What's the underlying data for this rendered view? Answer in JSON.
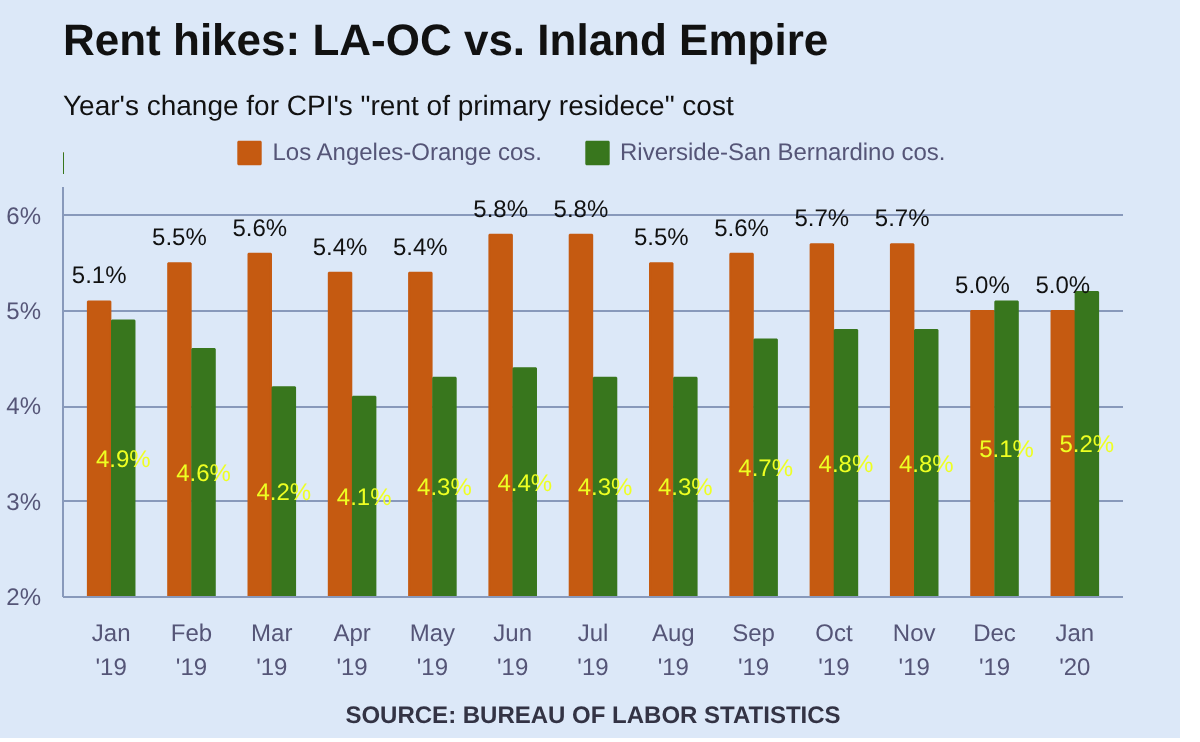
{
  "chart_data": {
    "type": "bar",
    "title": "Rent hikes: LA-OC vs. Inland Empire",
    "subtitle": "Year's change for CPI's \"rent of primary residece\" cost",
    "categories": [
      "Jan\n'19",
      "Feb\n'19",
      "Mar\n'19",
      "Apr\n'19",
      "May\n'19",
      "Jun\n'19",
      "Jul\n'19",
      "Aug\n'19",
      "Sep\n'19",
      "Oct\n'19",
      "Nov\n'19",
      "Dec\n'19",
      "Jan\n'20"
    ],
    "series": [
      {
        "name": "Los Angeles-Orange cos.",
        "color": "#c55a11",
        "values": [
          5.1,
          5.5,
          5.6,
          5.4,
          5.4,
          5.8,
          5.8,
          5.5,
          5.6,
          5.7,
          5.7,
          5.0,
          5.0
        ],
        "value_labels": [
          "5.1%",
          "5.5%",
          "5.6%",
          "5.4%",
          "5.4%",
          "5.8%",
          "5.8%",
          "5.5%",
          "5.6%",
          "5.7%",
          "5.7%",
          "5.0%",
          "5.0%"
        ]
      },
      {
        "name": "Riverside-San Bernardino cos.",
        "color": "#38761d",
        "values": [
          4.9,
          4.6,
          4.2,
          4.1,
          4.3,
          4.4,
          4.3,
          4.3,
          4.7,
          4.8,
          4.8,
          5.1,
          5.2
        ],
        "value_labels": [
          "4.9%",
          "4.6%",
          "4.2%",
          "4.1%",
          "4.3%",
          "4.4%",
          "4.3%",
          "4.3%",
          "4.7%",
          "4.8%",
          "4.8%",
          "5.1%",
          "5.2%"
        ]
      }
    ],
    "ylim": [
      2,
      6.3
    ],
    "yticks": [
      {
        "value": 2,
        "label": "2%"
      },
      {
        "value": 3,
        "label": "3%"
      },
      {
        "value": 4,
        "label": "4%"
      },
      {
        "value": 5,
        "label": "5%"
      },
      {
        "value": 6,
        "label": "6%"
      }
    ],
    "grid": "y",
    "legend": "top",
    "annotations": [
      "SOURCE: BUREAU OF LABOR STATISTICS"
    ]
  }
}
